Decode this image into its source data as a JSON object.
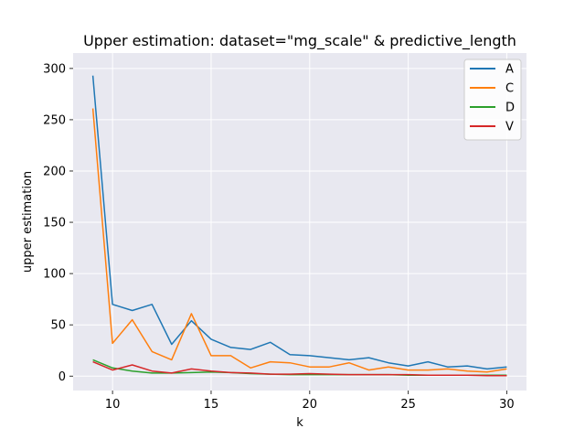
{
  "chart_data": {
    "type": "line",
    "title": "Upper estimation: dataset=\"mg_scale\" & predictive_length",
    "xlabel": "k",
    "ylabel": "upper estimation",
    "xlim": [
      8,
      31
    ],
    "ylim": [
      -14,
      315
    ],
    "xticks": [
      10,
      15,
      20,
      25,
      30
    ],
    "yticks": [
      0,
      50,
      100,
      150,
      200,
      250,
      300
    ],
    "grid": true,
    "legend_position": "top-right",
    "background": "#e8e8f0",
    "x": [
      9,
      10,
      11,
      12,
      13,
      14,
      15,
      16,
      17,
      18,
      19,
      20,
      21,
      22,
      23,
      24,
      25,
      26,
      27,
      28,
      29,
      30
    ],
    "series": [
      {
        "name": "A",
        "color": "#1f77b4",
        "values": [
          293,
          70,
          64,
          70,
          31,
          54,
          36,
          28,
          26,
          33,
          21,
          20,
          18,
          16,
          18,
          13,
          10,
          14,
          9,
          10,
          7,
          9
        ]
      },
      {
        "name": "C",
        "color": "#ff7f0e",
        "values": [
          261,
          32,
          55,
          24,
          16,
          61,
          20,
          20,
          8,
          14,
          13,
          9,
          9,
          13,
          6,
          9,
          6,
          6,
          7,
          5,
          4,
          7
        ]
      },
      {
        "name": "D",
        "color": "#2ca02c",
        "values": [
          16,
          8,
          5,
          3,
          3,
          3.5,
          4,
          3.5,
          2.5,
          2,
          1.5,
          1.5,
          1.5,
          1.5,
          1.5,
          1.5,
          1,
          1,
          1,
          1,
          1,
          1
        ]
      },
      {
        "name": "V",
        "color": "#d62728",
        "values": [
          14,
          6,
          11,
          5,
          3,
          7,
          5,
          3.5,
          3,
          2,
          2,
          2.5,
          2,
          1.5,
          1.5,
          1.5,
          1.5,
          1,
          1,
          1,
          0.5,
          0.5
        ]
      }
    ]
  }
}
